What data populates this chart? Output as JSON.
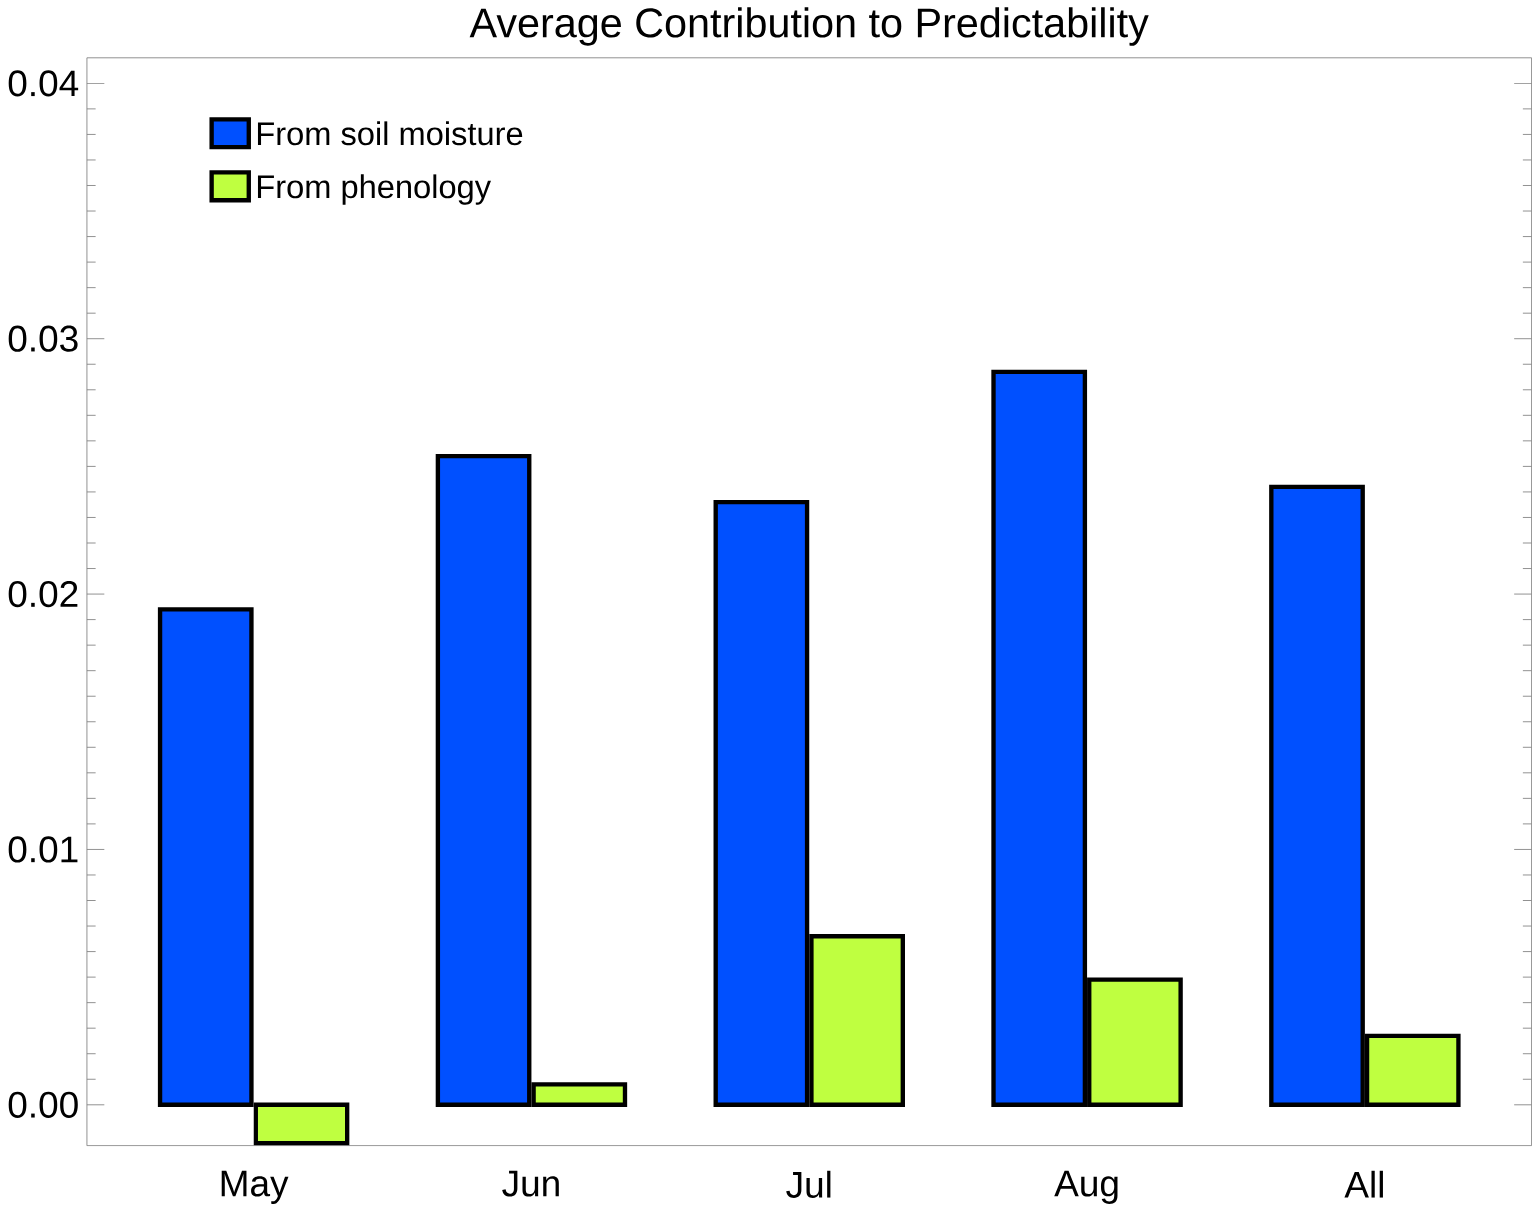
{
  "chart_data": {
    "type": "bar",
    "title": "Average Contribution to Predictability",
    "categories": [
      "May",
      "Jun",
      "Jul",
      "Aug",
      "All"
    ],
    "series": [
      {
        "name": "From soil moisture",
        "color": "#0050ff",
        "values": [
          0.0194,
          0.0254,
          0.0236,
          0.0287,
          0.0242
        ]
      },
      {
        "name": "From phenology",
        "color": "#bfff40",
        "values": [
          -0.0015,
          0.0008,
          0.0066,
          0.0049,
          0.0027
        ]
      }
    ],
    "ylim": [
      -0.0016,
      0.041
    ],
    "yticks": [
      {
        "value": 0,
        "label": "0.00"
      },
      0.01,
      0.02,
      0.03,
      0.04
    ],
    "legend": "top left",
    "grid": false
  }
}
